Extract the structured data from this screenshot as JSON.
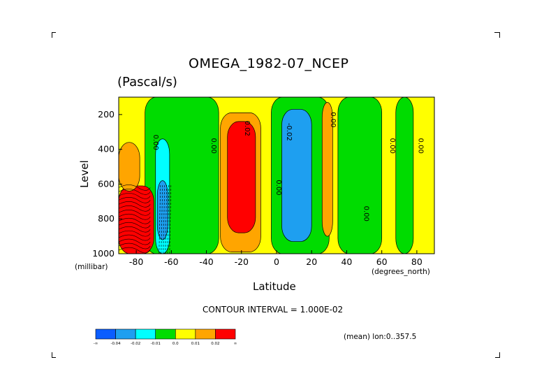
{
  "page": {
    "title": "OMEGA_1982-07_NCEP",
    "units": "(Pascal/s)",
    "contour_interval": "CONTOUR INTERVAL = 1.000E-02",
    "mean_note": "(mean) lon:0..357.5"
  },
  "chart_data": {
    "type": "contour",
    "title": "OMEGA_1982-07_NCEP",
    "subtitle": "(Pascal/s)",
    "xlabel": "Latitude",
    "ylabel": "Level",
    "x_unit": "(degrees_north)",
    "y_unit": "(millibar)",
    "xlim": [
      -90,
      90
    ],
    "ylim": [
      1000,
      100
    ],
    "y_inverted": true,
    "x_ticks": [
      "-80",
      "-60",
      "-40",
      "-20",
      "0",
      "20",
      "40",
      "60",
      "80"
    ],
    "x_tick_values": [
      -80,
      -60,
      -40,
      -20,
      0,
      20,
      40,
      60,
      80
    ],
    "y_ticks": [
      "200",
      "400",
      "600",
      "800",
      "1000"
    ],
    "y_tick_values": [
      200,
      400,
      600,
      800,
      1000
    ],
    "contour_labels": [
      {
        "text": "0.00",
        "lat": -70,
        "lev": 360
      },
      {
        "text": "0.00",
        "lat": -37,
        "lev": 380
      },
      {
        "text": "0.02",
        "lat": -18,
        "lev": 280
      },
      {
        "text": "-0.02",
        "lat": 6,
        "lev": 300
      },
      {
        "text": "0.00",
        "lat": 0,
        "lev": 620
      },
      {
        "text": "0.00",
        "lat": 31,
        "lev": 230
      },
      {
        "text": "0.00",
        "lat": 50,
        "lev": 770
      },
      {
        "text": "0.00",
        "lat": 65,
        "lev": 380
      },
      {
        "text": "0.00",
        "lat": 81,
        "lev": 380
      }
    ],
    "colorbar": {
      "levels": [
        "-∞",
        "-0.04",
        "-0.02",
        "-0.01",
        "0.0",
        "0.01",
        "0.02",
        "∞"
      ],
      "colors": [
        "#0a5dff",
        "#1e9ff0",
        "#00ffff",
        "#00dc00",
        "#ffff00",
        "#ffa500",
        "#ff0000"
      ]
    },
    "regions": [
      {
        "value_band": "0.0 to 0.01",
        "lat": [
          -90,
          90
        ],
        "lev": [
          100,
          1000
        ],
        "color": "#ffff00"
      },
      {
        "value_band": "-0.01 to 0.0",
        "lat": [
          -75,
          -33
        ],
        "lev": [
          100,
          1000
        ],
        "color": "#00dc00"
      },
      {
        "value_band": "-0.01 to 0.0",
        "lat": [
          -3,
          30
        ],
        "lev": [
          100,
          1000
        ],
        "color": "#00dc00"
      },
      {
        "value_band": "-0.01 to 0.0",
        "lat": [
          35,
          60
        ],
        "lev": [
          100,
          1000
        ],
        "color": "#00dc00"
      },
      {
        "value_band": "-0.01 to 0.0",
        "lat": [
          68,
          78
        ],
        "lev": [
          100,
          1000
        ],
        "color": "#00dc00"
      },
      {
        "value_band": "0.01 to 0.02",
        "lat": [
          -32,
          -9
        ],
        "lev": [
          190,
          990
        ],
        "color": "#ffa500"
      },
      {
        "value_band": "> 0.02",
        "lat": [
          -28,
          -12
        ],
        "lev": [
          240,
          880
        ],
        "color": "#ff0000"
      },
      {
        "value_band": "-0.04 to -0.02",
        "lat": [
          3,
          20
        ],
        "lev": [
          170,
          930
        ],
        "color": "#1e9ff0"
      },
      {
        "value_band": "-0.02 to -0.01",
        "lat": [
          -69,
          -61
        ],
        "lev": [
          340,
          1000
        ],
        "color": "#00ffff"
      },
      {
        "value_band": "-0.04 to -0.02",
        "lat": [
          -68,
          -62
        ],
        "lev": [
          580,
          920
        ],
        "color": "#1e9ff0"
      },
      {
        "value_band": "> 0.02",
        "lat": [
          -90,
          -70
        ],
        "lev": [
          610,
          1000
        ],
        "color": "#ff0000"
      },
      {
        "value_band": "0.01 to 0.02",
        "lat": [
          -90,
          -78
        ],
        "lev": [
          360,
          640
        ],
        "color": "#ffa500"
      },
      {
        "value_band": "0.01 to 0.02",
        "lat": [
          26,
          32
        ],
        "lev": [
          130,
          900
        ],
        "color": "#ffa500"
      }
    ],
    "grid": false
  }
}
